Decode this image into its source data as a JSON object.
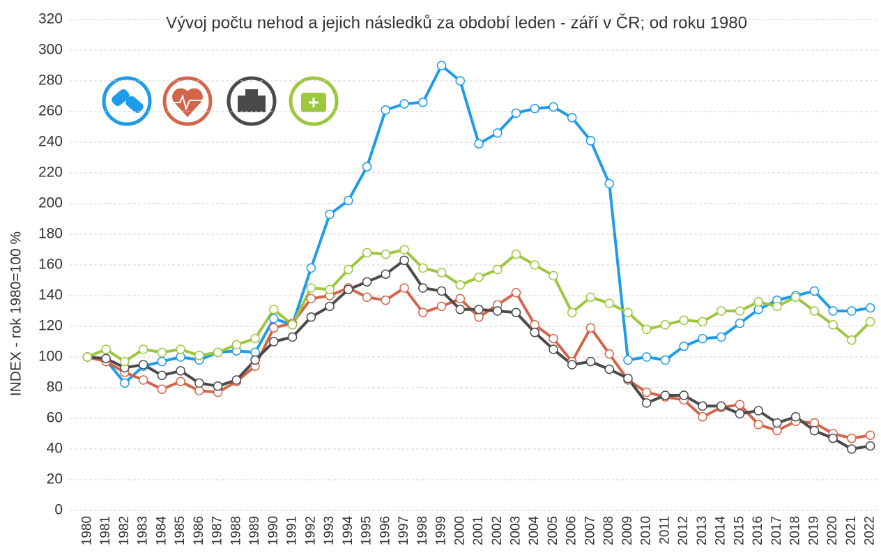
{
  "chart_data": {
    "type": "line",
    "title": "Vývoj počtu nehod a jejich následků za období leden - září v ČR; od roku 1980",
    "y_label": "INDEX - rok 1980=100 %",
    "categories": [
      "1980",
      "1981",
      "1982",
      "1983",
      "1984",
      "1985",
      "1986",
      "1987",
      "1988",
      "1989",
      "1990",
      "1991",
      "1992",
      "1993",
      "1994",
      "1995",
      "1996",
      "1997",
      "1998",
      "1999",
      "2000",
      "2001",
      "2002",
      "2003",
      "2004",
      "2005",
      "2006",
      "2007",
      "2008",
      "2009",
      "2010",
      "2011",
      "2012",
      "2013",
      "2014",
      "2015",
      "2016",
      "2017",
      "2018",
      "2019",
      "2020",
      "2021",
      "2022"
    ],
    "series": [
      {
        "color": "#1e9be9",
        "values": [
          100,
          98,
          83,
          94,
          97,
          100,
          98,
          103,
          104,
          103,
          125,
          121,
          158,
          193,
          202,
          224,
          261,
          265,
          266,
          290,
          280,
          239,
          246,
          259,
          262,
          263,
          256,
          241,
          213,
          98,
          100,
          98,
          107,
          112,
          113,
          122,
          131,
          137,
          140,
          143,
          130,
          130,
          132
        ]
      },
      {
        "color": "#d4654a",
        "values": [
          100,
          97,
          90,
          85,
          79,
          84,
          78,
          77,
          84,
          94,
          119,
          122,
          138,
          140,
          145,
          139,
          137,
          145,
          129,
          133,
          138,
          126,
          134,
          142,
          121,
          112,
          97,
          119,
          102,
          85,
          77,
          74,
          72,
          61,
          67,
          69,
          56,
          52,
          58,
          57,
          50,
          47,
          49
        ]
      },
      {
        "color": "#4a4a4a",
        "values": [
          100,
          99,
          93,
          95,
          88,
          91,
          83,
          81,
          85,
          98,
          110,
          113,
          126,
          133,
          144,
          149,
          154,
          163,
          145,
          143,
          131,
          131,
          130,
          129,
          116,
          105,
          95,
          97,
          92,
          86,
          70,
          75,
          75,
          68,
          68,
          63,
          65,
          57,
          61,
          52,
          47,
          40,
          42
        ]
      },
      {
        "color": "#9dc73e",
        "values": [
          100,
          105,
          97,
          105,
          103,
          105,
          101,
          103,
          108,
          112,
          131,
          121,
          145,
          144,
          157,
          168,
          167,
          170,
          158,
          155,
          147,
          152,
          157,
          167,
          160,
          153,
          129,
          139,
          135,
          129,
          118,
          121,
          124,
          123,
          130,
          130,
          136,
          133,
          139,
          130,
          121,
          111,
          123
        ]
      }
    ],
    "ylim": [
      0,
      320
    ],
    "yticks": [
      0,
      20,
      40,
      60,
      80,
      100,
      120,
      140,
      160,
      180,
      200,
      220,
      240,
      260,
      280,
      300,
      320
    ],
    "grid": true
  }
}
